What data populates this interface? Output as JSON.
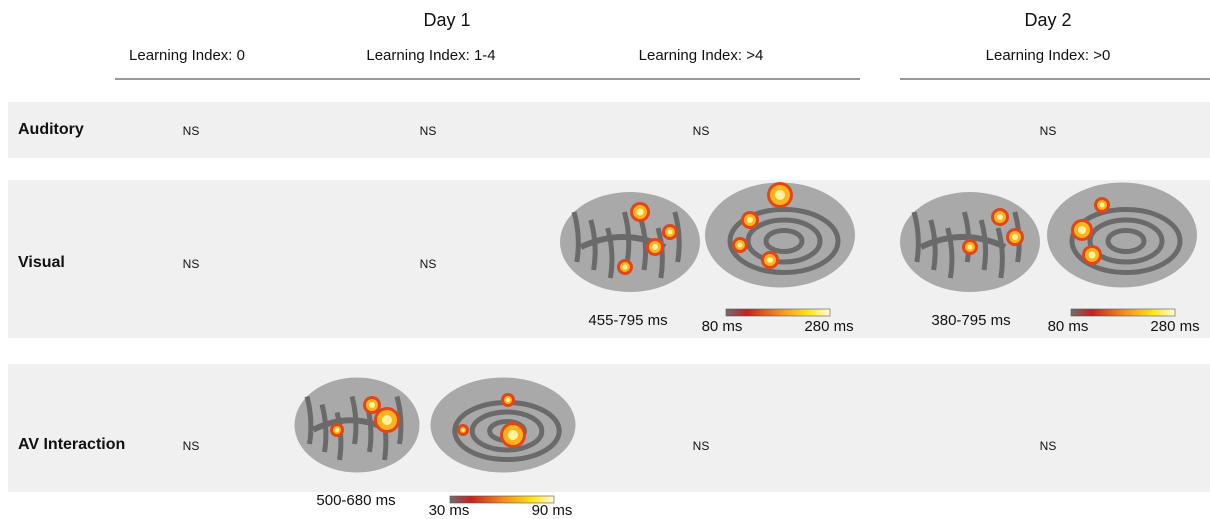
{
  "header": {
    "day1": "Day 1",
    "day2": "Day 2",
    "columns": [
      "Learning Index: 0",
      "Learning Index: 1-4",
      "Learning Index: >4",
      "Learning Index: >0"
    ]
  },
  "rows": [
    {
      "label": "Auditory",
      "cells": [
        {
          "text": "NS"
        },
        {
          "text": "NS"
        },
        {
          "text": "NS"
        },
        {
          "text": "NS"
        }
      ]
    },
    {
      "label": "Visual",
      "cells": [
        {
          "text": "NS"
        },
        {
          "text": "NS"
        },
        {
          "window": "455-795 ms",
          "scale_min": "80 ms",
          "scale_max": "280 ms"
        },
        {
          "window": "380-795 ms",
          "scale_min": "80 ms",
          "scale_max": "280 ms"
        }
      ]
    },
    {
      "label": "AV Interaction",
      "cells": [
        {
          "text": "NS"
        },
        {
          "window": "500-680 ms",
          "scale_min": "30 ms",
          "scale_max": "90 ms"
        },
        {
          "text": "NS"
        },
        {
          "text": "NS"
        }
      ]
    }
  ]
}
